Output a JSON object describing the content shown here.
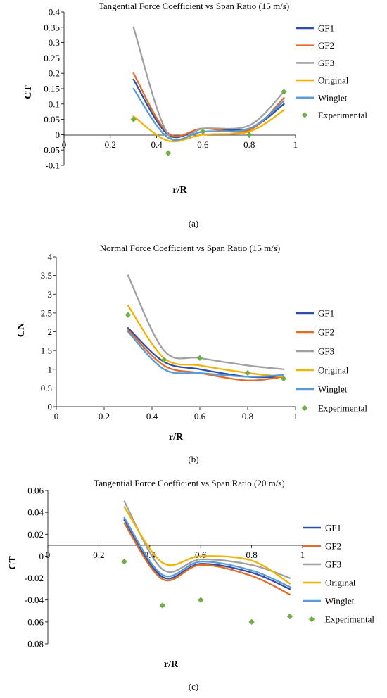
{
  "chart_data": [
    {
      "type": "line",
      "title": "Tangential Force Coefficient vs Span Ratio (15 m/s)",
      "xlabel": "r/R",
      "ylabel": "CT",
      "xlim": [
        0,
        1
      ],
      "ylim": [
        -0.1,
        0.4
      ],
      "x_ticks": [
        "0",
        "0.2",
        "0.4",
        "0.6",
        "0.8",
        "1"
      ],
      "y_ticks": [
        "0.4",
        "0.35",
        "0.3",
        "0.25",
        "0.2",
        "0.15",
        "0.1",
        "0.05",
        "0",
        "-0.05",
        "-0.1"
      ],
      "legend_position": "right",
      "panel_label": "(a)",
      "series": [
        {
          "name": "GF1",
          "color": "#2f4fa3",
          "x": [
            0.3,
            0.45,
            0.6,
            0.8,
            0.95
          ],
          "y": [
            0.18,
            0.0,
            0.02,
            0.02,
            0.1
          ]
        },
        {
          "name": "GF2",
          "color": "#e26b27",
          "x": [
            0.3,
            0.45,
            0.6,
            0.8,
            0.95
          ],
          "y": [
            0.2,
            0.005,
            0.02,
            0.015,
            0.12
          ]
        },
        {
          "name": "GF3",
          "color": "#a0a0a0",
          "x": [
            0.3,
            0.45,
            0.6,
            0.8,
            0.95
          ],
          "y": [
            0.35,
            0.0,
            0.02,
            0.03,
            0.14
          ]
        },
        {
          "name": "Original",
          "color": "#f0b400",
          "x": [
            0.3,
            0.45,
            0.6,
            0.8,
            0.95
          ],
          "y": [
            0.06,
            -0.02,
            0.0,
            0.01,
            0.08
          ]
        },
        {
          "name": "Winglet",
          "color": "#5b9bd5",
          "x": [
            0.3,
            0.45,
            0.6,
            0.8,
            0.95
          ],
          "y": [
            0.15,
            -0.01,
            0.01,
            0.02,
            0.11
          ]
        }
      ],
      "scatter": {
        "name": "Experimental",
        "color": "#70ad47",
        "x": [
          0.3,
          0.45,
          0.6,
          0.8,
          0.95
        ],
        "y": [
          0.05,
          -0.06,
          0.01,
          0.0,
          0.14
        ]
      }
    },
    {
      "type": "line",
      "title": "Normal Force Coefficient vs Span Ratio (15 m/s)",
      "xlabel": "r/R",
      "ylabel": "CN",
      "xlim": [
        0,
        1
      ],
      "ylim": [
        0,
        4
      ],
      "x_ticks": [
        "0",
        "0.2",
        "0.4",
        "0.6",
        "0.8",
        "1"
      ],
      "y_ticks": [
        "4",
        "3.5",
        "3",
        "2.5",
        "2",
        "1.5",
        "1",
        "0.5",
        "0"
      ],
      "legend_position": "right",
      "panel_label": "(b)",
      "series": [
        {
          "name": "GF1",
          "color": "#2f4fa3",
          "x": [
            0.3,
            0.45,
            0.6,
            0.8,
            0.95
          ],
          "y": [
            2.1,
            1.2,
            1.0,
            0.8,
            0.8
          ]
        },
        {
          "name": "GF2",
          "color": "#e26b27",
          "x": [
            0.3,
            0.45,
            0.6,
            0.8,
            0.95
          ],
          "y": [
            2.05,
            1.1,
            0.9,
            0.7,
            0.8
          ]
        },
        {
          "name": "GF3",
          "color": "#a0a0a0",
          "x": [
            0.3,
            0.45,
            0.6,
            0.8,
            0.95
          ],
          "y": [
            3.5,
            1.5,
            1.3,
            1.1,
            1.0
          ]
        },
        {
          "name": "Original",
          "color": "#f0b400",
          "x": [
            0.3,
            0.45,
            0.6,
            0.8,
            0.95
          ],
          "y": [
            2.7,
            1.3,
            1.1,
            0.9,
            0.8
          ]
        },
        {
          "name": "Winglet",
          "color": "#5b9bd5",
          "x": [
            0.3,
            0.45,
            0.6,
            0.8,
            0.95
          ],
          "y": [
            2.0,
            1.0,
            0.9,
            0.8,
            0.85
          ]
        }
      ],
      "scatter": {
        "name": "Experimental",
        "color": "#70ad47",
        "x": [
          0.3,
          0.45,
          0.6,
          0.8,
          0.95
        ],
        "y": [
          2.45,
          1.25,
          1.3,
          0.9,
          0.75
        ]
      }
    },
    {
      "type": "line",
      "title": "Tangential Force Coefficient vs Span Ratio (20 m/s)",
      "xlabel": "r/R",
      "ylabel": "CT",
      "xlim": [
        0,
        1
      ],
      "ylim": [
        -0.08,
        0.06
      ],
      "x_ticks": [
        "0",
        "0.2",
        "0.4",
        "0.6",
        "0.8",
        "1"
      ],
      "y_ticks": [
        "0.06",
        "0.04",
        "0.02",
        "0",
        "-0.02",
        "-0.04",
        "-0.06",
        "-0.08"
      ],
      "legend_position": "right",
      "panel_label": "(c)",
      "series": [
        {
          "name": "GF1",
          "color": "#2f4fa3",
          "x": [
            0.3,
            0.45,
            0.6,
            0.8,
            0.95
          ],
          "y": [
            0.033,
            -0.019,
            -0.007,
            -0.015,
            -0.03
          ]
        },
        {
          "name": "GF2",
          "color": "#e26b27",
          "x": [
            0.3,
            0.45,
            0.6,
            0.8,
            0.95
          ],
          "y": [
            0.03,
            -0.021,
            -0.008,
            -0.018,
            -0.035
          ]
        },
        {
          "name": "GF3",
          "color": "#a0a0a0",
          "x": [
            0.3,
            0.45,
            0.6,
            0.8,
            0.95
          ],
          "y": [
            0.05,
            -0.012,
            -0.003,
            -0.008,
            -0.02
          ]
        },
        {
          "name": "Original",
          "color": "#f0b400",
          "x": [
            0.3,
            0.45,
            0.6,
            0.8,
            0.95
          ],
          "y": [
            0.045,
            -0.006,
            0.0,
            -0.004,
            -0.025
          ]
        },
        {
          "name": "Winglet",
          "color": "#5b9bd5",
          "x": [
            0.3,
            0.45,
            0.6,
            0.8,
            0.95
          ],
          "y": [
            0.035,
            -0.017,
            -0.005,
            -0.013,
            -0.028
          ]
        }
      ],
      "scatter": {
        "name": "Experimental",
        "color": "#70ad47",
        "x": [
          0.3,
          0.45,
          0.6,
          0.8,
          0.95
        ],
        "y": [
          -0.005,
          -0.045,
          -0.04,
          -0.06,
          -0.055
        ]
      }
    }
  ]
}
